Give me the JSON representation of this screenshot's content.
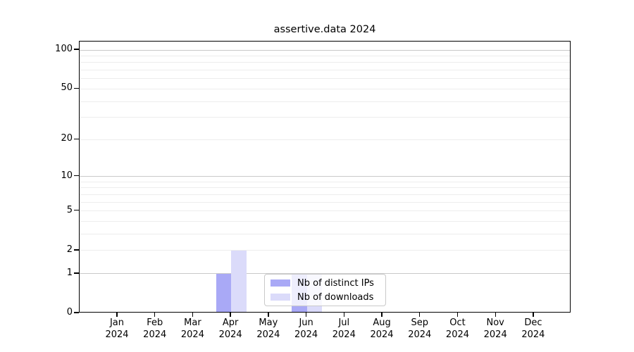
{
  "chart_data": {
    "type": "bar",
    "title": "assertive.data 2024",
    "categories": [
      "Jan",
      "Feb",
      "Mar",
      "Apr",
      "May",
      "Jun",
      "Jul",
      "Aug",
      "Sep",
      "Oct",
      "Nov",
      "Dec"
    ],
    "x_tick_year": "2024",
    "series": [
      {
        "name": "Nb of distinct IPs",
        "color": "#a9a9f6",
        "values": [
          0,
          0,
          0,
          1,
          0,
          1,
          0,
          0,
          0,
          0,
          0,
          0
        ]
      },
      {
        "name": "Nb of downloads",
        "color": "#dbdbfa",
        "values": [
          0,
          0,
          0,
          2,
          0,
          1,
          0,
          0,
          0,
          0,
          0,
          0
        ]
      }
    ],
    "yscale": "log1p",
    "yticks": [
      0,
      1,
      2,
      5,
      10,
      20,
      50,
      100
    ],
    "major_gridlines": [
      1,
      10,
      100
    ],
    "light_gridlines": [
      2,
      3,
      4,
      5,
      6,
      7,
      8,
      9,
      20,
      30,
      40,
      50,
      60,
      70,
      80,
      90
    ],
    "ylim": [
      0,
      115
    ],
    "grid": true,
    "legend_position": "lower center-left, overlapping Jun bars",
    "colors": {
      "major_grid": "#c9c9c9",
      "minor_grid": "#ededed",
      "axis": "#000000",
      "background": "#ffffff"
    }
  }
}
